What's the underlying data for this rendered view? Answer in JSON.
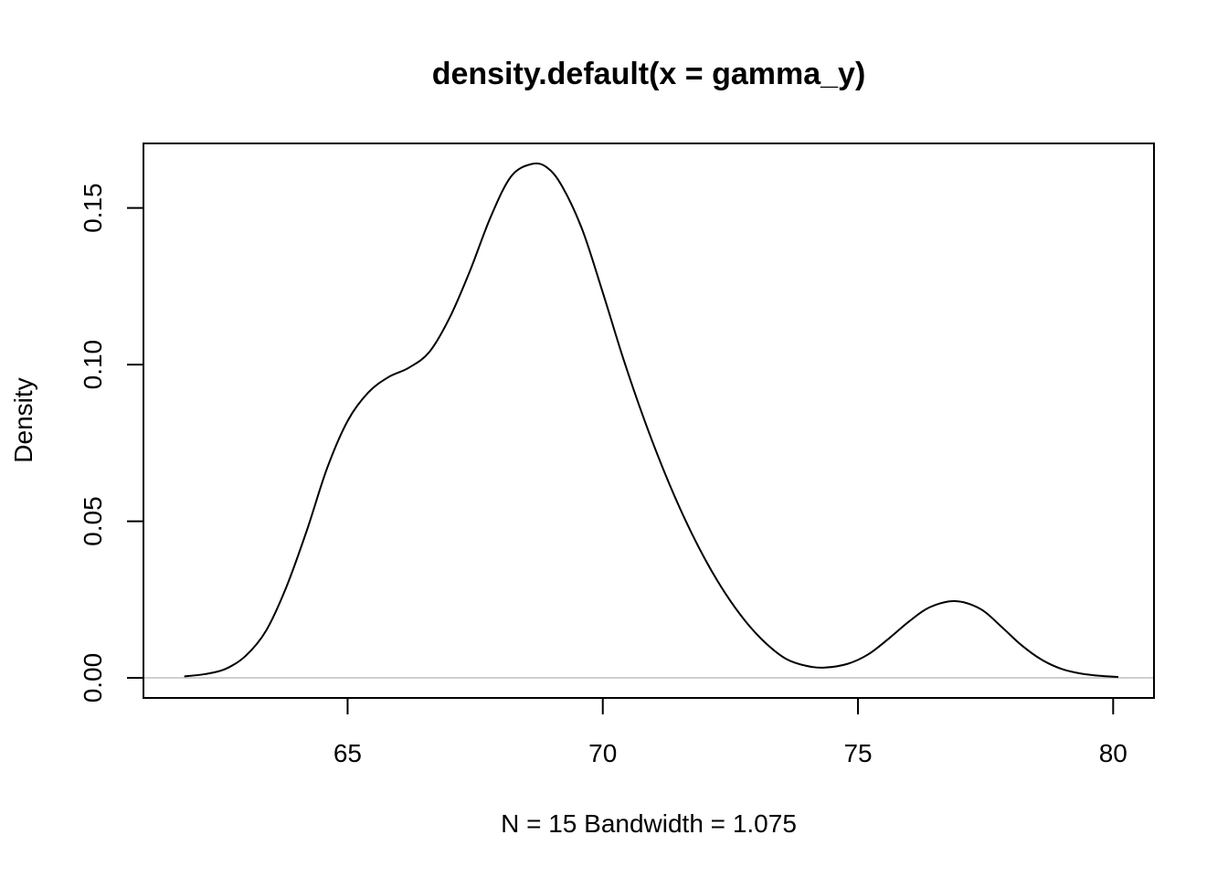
{
  "chart_data": {
    "type": "line",
    "title": "density.default(x = gamma_y)",
    "xlabel": "N = 15   Bandwidth = 1.075",
    "ylabel": "Density",
    "xlim": [
      61.0,
      80.8
    ],
    "ylim": [
      -0.0064,
      0.1706
    ],
    "x_ticks": [
      65,
      70,
      75,
      80
    ],
    "x_tick_labels": [
      "65",
      "70",
      "75",
      "80"
    ],
    "y_ticks": [
      0.0,
      0.05,
      0.1,
      0.15
    ],
    "y_tick_labels": [
      "0.00",
      "0.05",
      "0.10",
      "0.15"
    ],
    "baseline_y": 0,
    "grid": false,
    "legend": "none",
    "colors": {
      "line": "#000000",
      "baseline": "#bebebe",
      "frame": "#000000"
    },
    "series": [
      {
        "x": [
          61.8,
          62.2,
          62.6,
          63.0,
          63.4,
          63.8,
          64.2,
          64.6,
          65.0,
          65.4,
          65.8,
          66.2,
          66.6,
          67.0,
          67.4,
          67.8,
          68.2,
          68.6,
          68.9,
          69.2,
          69.6,
          70.0,
          70.4,
          70.8,
          71.2,
          71.6,
          72.0,
          72.4,
          72.8,
          73.2,
          73.6,
          74.0,
          74.35,
          74.8,
          75.2,
          75.6,
          76.0,
          76.4,
          76.9,
          77.4,
          77.8,
          78.2,
          78.6,
          79.0,
          79.4,
          79.8,
          80.1
        ],
        "y": [
          0.0005,
          0.0012,
          0.0028,
          0.007,
          0.015,
          0.029,
          0.047,
          0.067,
          0.082,
          0.091,
          0.096,
          0.099,
          0.104,
          0.115,
          0.13,
          0.147,
          0.16,
          0.164,
          0.163,
          0.157,
          0.143,
          0.123,
          0.102,
          0.083,
          0.066,
          0.051,
          0.038,
          0.027,
          0.018,
          0.011,
          0.006,
          0.0038,
          0.0033,
          0.0045,
          0.0075,
          0.0125,
          0.018,
          0.0225,
          0.0245,
          0.022,
          0.0165,
          0.0105,
          0.0058,
          0.0028,
          0.0013,
          0.0006,
          0.0003
        ]
      }
    ]
  }
}
